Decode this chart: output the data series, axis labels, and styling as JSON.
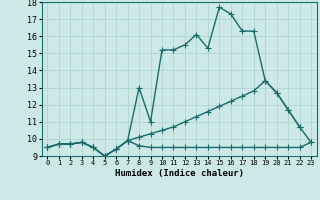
{
  "xlabel": "Humidex (Indice chaleur)",
  "ylabel": "",
  "xlim": [
    -0.5,
    23.5
  ],
  "ylim": [
    9,
    18
  ],
  "xticks": [
    0,
    1,
    2,
    3,
    4,
    5,
    6,
    7,
    8,
    9,
    10,
    11,
    12,
    13,
    14,
    15,
    16,
    17,
    18,
    19,
    20,
    21,
    22,
    23
  ],
  "yticks": [
    9,
    10,
    11,
    12,
    13,
    14,
    15,
    16,
    17,
    18
  ],
  "bg_color": "#cce9e8",
  "grid_color": "#b0d4d3",
  "line_color": "#1a6b6b",
  "line_width": 1.0,
  "marker": "+",
  "marker_size": 4,
  "line1_x": [
    0,
    1,
    2,
    3,
    4,
    5,
    6,
    7,
    8,
    9,
    10,
    11,
    12,
    13,
    14,
    15,
    16,
    17,
    18,
    19,
    20,
    21,
    22
  ],
  "line1_y": [
    9.5,
    9.7,
    9.7,
    9.8,
    9.5,
    9.0,
    9.4,
    9.9,
    13.0,
    11.0,
    15.2,
    15.2,
    15.5,
    16.1,
    15.3,
    17.7,
    17.3,
    16.3,
    16.3,
    13.4,
    12.7,
    11.7,
    10.7
  ],
  "line2_x": [
    0,
    1,
    2,
    3,
    4,
    5,
    6,
    7,
    8,
    9,
    10,
    11,
    12,
    13,
    14,
    15,
    16,
    17,
    18,
    19,
    20,
    21,
    22,
    23
  ],
  "line2_y": [
    9.5,
    9.7,
    9.7,
    9.8,
    9.5,
    9.0,
    9.4,
    9.9,
    10.1,
    10.3,
    10.5,
    10.7,
    11.0,
    11.3,
    11.6,
    11.9,
    12.2,
    12.5,
    12.8,
    13.4,
    12.7,
    11.7,
    10.7,
    9.8
  ],
  "line3_x": [
    0,
    1,
    2,
    3,
    4,
    5,
    6,
    7,
    8,
    9,
    10,
    11,
    12,
    13,
    14,
    15,
    16,
    17,
    18,
    19,
    20,
    21,
    22,
    23
  ],
  "line3_y": [
    9.5,
    9.7,
    9.7,
    9.8,
    9.5,
    9.0,
    9.4,
    9.9,
    9.6,
    9.5,
    9.5,
    9.5,
    9.5,
    9.5,
    9.5,
    9.5,
    9.5,
    9.5,
    9.5,
    9.5,
    9.5,
    9.5,
    9.5,
    9.8
  ]
}
